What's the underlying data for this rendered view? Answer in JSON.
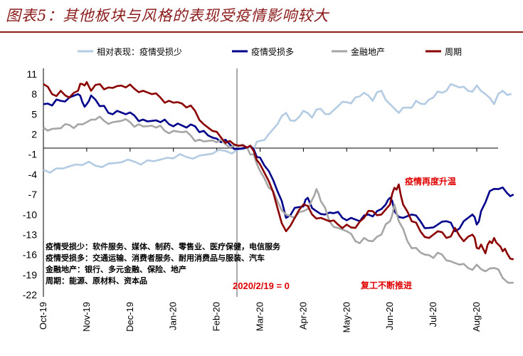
{
  "title": "图表5：其他板块与风格的表现受疫情影响较大",
  "legend": [
    {
      "label": "相对表现：疫情受损少",
      "color": "#b4cbe4"
    },
    {
      "label": "疫情受损多",
      "color": "#00008b"
    },
    {
      "label": "金融地产",
      "color": "#a6a6a6"
    },
    {
      "label": "周期",
      "color": "#8b0000"
    }
  ],
  "notes": [
    "疫情受损少：软件服务、媒体、制药、零售业、医疗保健，电信服务",
    "疫情受损多：交通运输、消费者服务、耐用消费品与服装、汽车",
    "金融地产：银行、多元金融、保险、地产",
    "周期：能源、原材料、资本品"
  ],
  "annotations": {
    "resurgence": "疫情再度升温",
    "resumption": "复工不断推进",
    "base_date": "2020/2/19 = 0"
  },
  "chart_data": {
    "type": "line",
    "title": "其他板块与风格的表现受疫情影响较大",
    "ylim": [
      -22,
      12.5
    ],
    "yticks": [
      11,
      8,
      5,
      2,
      -1,
      -4,
      -7,
      -10,
      -13,
      -16,
      -19,
      -22
    ],
    "xrange": [
      0,
      11
    ],
    "xticks": [
      {
        "label": "Oct-19",
        "x": 0
      },
      {
        "label": "Nov-19",
        "x": 1
      },
      {
        "label": "Dec-19",
        "x": 2
      },
      {
        "label": "Jan-20",
        "x": 3
      },
      {
        "label": "Feb-20",
        "x": 4
      },
      {
        "label": "Mar-20",
        "x": 5
      },
      {
        "label": "Apr-20",
        "x": 6
      },
      {
        "label": "May-20",
        "x": 7
      },
      {
        "label": "Jun-20",
        "x": 8
      },
      {
        "label": "Jul-20",
        "x": 9
      },
      {
        "label": "Aug-20",
        "x": 10
      }
    ],
    "series": [
      {
        "name": "相对表现：疫情受损少",
        "color": "#b4cbe4",
        "points": [
          [
            0,
            -3.3
          ],
          [
            0.3,
            -3.1
          ],
          [
            0.6,
            -2.8
          ],
          [
            0.9,
            -2.6
          ],
          [
            1.2,
            -2.7
          ],
          [
            1.5,
            -2.4
          ],
          [
            1.8,
            -2.2
          ],
          [
            2.1,
            -2.1
          ],
          [
            2.4,
            -1.9
          ],
          [
            2.7,
            -1.8
          ],
          [
            3.0,
            -1.6
          ],
          [
            3.3,
            -1.4
          ],
          [
            3.6,
            -1.2
          ],
          [
            3.9,
            -0.9
          ],
          [
            4.2,
            -0.5
          ],
          [
            4.5,
            -0.2
          ],
          [
            4.7,
            0
          ],
          [
            4.85,
            -0.3
          ],
          [
            5.0,
            1.0
          ],
          [
            5.2,
            2.0
          ],
          [
            5.4,
            3.5
          ],
          [
            5.6,
            5.2
          ],
          [
            5.8,
            4.0
          ],
          [
            6.0,
            5.5
          ],
          [
            6.2,
            4.5
          ],
          [
            6.4,
            5.8
          ],
          [
            6.6,
            5.0
          ],
          [
            6.8,
            6.2
          ],
          [
            7.0,
            6.8
          ],
          [
            7.2,
            7.5
          ],
          [
            7.4,
            8.2
          ],
          [
            7.6,
            7.0
          ],
          [
            7.8,
            8.5
          ],
          [
            8.0,
            6.5
          ],
          [
            8.2,
            5.2
          ],
          [
            8.4,
            6.0
          ],
          [
            8.6,
            7.0
          ],
          [
            8.8,
            6.5
          ],
          [
            9.0,
            7.5
          ],
          [
            9.2,
            8.2
          ],
          [
            9.4,
            9.5
          ],
          [
            9.6,
            9.0
          ],
          [
            9.8,
            8.5
          ],
          [
            10.0,
            9.3
          ],
          [
            10.2,
            8.0
          ],
          [
            10.4,
            6.5
          ],
          [
            10.6,
            8.5
          ],
          [
            10.8,
            8.0
          ]
        ]
      },
      {
        "name": "疫情受损多",
        "color": "#00008b",
        "points": [
          [
            0,
            6.5
          ],
          [
            0.2,
            6.3
          ],
          [
            0.4,
            7.0
          ],
          [
            0.6,
            7.5
          ],
          [
            0.8,
            8.0
          ],
          [
            0.9,
            6.8
          ],
          [
            1.0,
            6.5
          ],
          [
            1.1,
            7.8
          ],
          [
            1.3,
            6.2
          ],
          [
            1.5,
            5.2
          ],
          [
            1.7,
            5.5
          ],
          [
            1.9,
            5.0
          ],
          [
            2.1,
            4.8
          ],
          [
            2.3,
            4.2
          ],
          [
            2.5,
            4.0
          ],
          [
            2.7,
            3.8
          ],
          [
            2.9,
            3.5
          ],
          [
            3.1,
            3.6
          ],
          [
            3.3,
            3.0
          ],
          [
            3.5,
            3.2
          ],
          [
            3.7,
            2.5
          ],
          [
            3.9,
            1.5
          ],
          [
            4.1,
            0.8
          ],
          [
            4.3,
            0.5
          ],
          [
            4.5,
            -0.2
          ],
          [
            4.7,
            0
          ],
          [
            4.85,
            -0.2
          ],
          [
            5.0,
            -1.5
          ],
          [
            5.2,
            -3.5
          ],
          [
            5.4,
            -6.5
          ],
          [
            5.6,
            -10.5
          ],
          [
            5.8,
            -9.0
          ],
          [
            6.0,
            -8.8
          ],
          [
            6.1,
            -7.5
          ],
          [
            6.3,
            -9.5
          ],
          [
            6.5,
            -10.0
          ],
          [
            6.7,
            -9.8
          ],
          [
            6.9,
            -10.5
          ],
          [
            7.1,
            -10.5
          ],
          [
            7.3,
            -11.0
          ],
          [
            7.5,
            -10.0
          ],
          [
            7.7,
            -9.5
          ],
          [
            7.9,
            -8.5
          ],
          [
            8.0,
            -7.5
          ],
          [
            8.1,
            -9.5
          ],
          [
            8.3,
            -10.5
          ],
          [
            8.5,
            -10.0
          ],
          [
            8.7,
            -11.0
          ],
          [
            8.9,
            -12.0
          ],
          [
            9.1,
            -11.5
          ],
          [
            9.3,
            -11.0
          ],
          [
            9.5,
            -12.5
          ],
          [
            9.7,
            -11.0
          ],
          [
            9.9,
            -10.0
          ],
          [
            10.0,
            -11.5
          ],
          [
            10.1,
            -9.5
          ],
          [
            10.3,
            -6.5
          ],
          [
            10.5,
            -6.2
          ],
          [
            10.7,
            -6.8
          ],
          [
            10.85,
            -7.0
          ]
        ]
      },
      {
        "name": "金融地产",
        "color": "#a6a6a6",
        "points": [
          [
            0,
            3.0
          ],
          [
            0.2,
            2.8
          ],
          [
            0.4,
            2.9
          ],
          [
            0.6,
            3.4
          ],
          [
            0.8,
            3.5
          ],
          [
            1.0,
            3.8
          ],
          [
            1.2,
            4.2
          ],
          [
            1.4,
            4.0
          ],
          [
            1.6,
            3.8
          ],
          [
            1.8,
            4.0
          ],
          [
            2.0,
            3.8
          ],
          [
            2.2,
            3.5
          ],
          [
            2.4,
            3.2
          ],
          [
            2.6,
            3.0
          ],
          [
            2.8,
            2.5
          ],
          [
            3.0,
            2.5
          ],
          [
            3.2,
            2.3
          ],
          [
            3.4,
            1.8
          ],
          [
            3.6,
            1.2
          ],
          [
            3.8,
            1.0
          ],
          [
            4.0,
            0.8
          ],
          [
            4.2,
            0.5
          ],
          [
            4.4,
            0.3
          ],
          [
            4.5,
            0.2
          ],
          [
            4.7,
            0
          ],
          [
            4.85,
            -1.0
          ],
          [
            5.0,
            -3.5
          ],
          [
            5.2,
            -6.0
          ],
          [
            5.4,
            -8.0
          ],
          [
            5.6,
            -10.0
          ],
          [
            5.8,
            -10.5
          ],
          [
            6.0,
            -9.5
          ],
          [
            6.2,
            -7.8
          ],
          [
            6.3,
            -6.2
          ],
          [
            6.4,
            -8.0
          ],
          [
            6.6,
            -11.0
          ],
          [
            6.8,
            -12.0
          ],
          [
            7.0,
            -12.5
          ],
          [
            7.2,
            -14.0
          ],
          [
            7.4,
            -13.5
          ],
          [
            7.6,
            -14.0
          ],
          [
            7.8,
            -13.0
          ],
          [
            8.0,
            -11.0
          ],
          [
            8.1,
            -8.5
          ],
          [
            8.2,
            -11.0
          ],
          [
            8.4,
            -14.0
          ],
          [
            8.6,
            -15.0
          ],
          [
            8.8,
            -16.0
          ],
          [
            9.0,
            -16.5
          ],
          [
            9.2,
            -16.0
          ],
          [
            9.4,
            -17.0
          ],
          [
            9.6,
            -17.5
          ],
          [
            9.8,
            -18.0
          ],
          [
            10.0,
            -17.5
          ],
          [
            10.2,
            -18.5
          ],
          [
            10.4,
            -18.0
          ],
          [
            10.6,
            -19.5
          ],
          [
            10.85,
            -20.2
          ]
        ]
      },
      {
        "name": "周期",
        "color": "#8b0000",
        "points": [
          [
            0,
            9.5
          ],
          [
            0.2,
            8.0
          ],
          [
            0.4,
            8.5
          ],
          [
            0.6,
            7.5
          ],
          [
            0.8,
            8.5
          ],
          [
            0.9,
            9.5
          ],
          [
            1.0,
            9.8
          ],
          [
            1.1,
            8.5
          ],
          [
            1.3,
            9.5
          ],
          [
            1.5,
            9.0
          ],
          [
            1.7,
            9.2
          ],
          [
            1.9,
            9.0
          ],
          [
            2.1,
            8.8
          ],
          [
            2.3,
            8.5
          ],
          [
            2.5,
            8.0
          ],
          [
            2.7,
            7.5
          ],
          [
            2.9,
            7.0
          ],
          [
            3.1,
            6.8
          ],
          [
            3.3,
            6.0
          ],
          [
            3.5,
            5.5
          ],
          [
            3.7,
            3.5
          ],
          [
            3.9,
            2.5
          ],
          [
            4.1,
            1.5
          ],
          [
            4.3,
            1.0
          ],
          [
            4.5,
            0.3
          ],
          [
            4.7,
            0
          ],
          [
            4.85,
            -0.5
          ],
          [
            5.0,
            -2.5
          ],
          [
            5.2,
            -5.0
          ],
          [
            5.4,
            -9.0
          ],
          [
            5.6,
            -12.5
          ],
          [
            5.8,
            -10.5
          ],
          [
            6.0,
            -8.5
          ],
          [
            6.2,
            -10.0
          ],
          [
            6.4,
            -10.5
          ],
          [
            6.6,
            -11.0
          ],
          [
            6.8,
            -11.5
          ],
          [
            7.0,
            -11.5
          ],
          [
            7.2,
            -12.0
          ],
          [
            7.4,
            -10.5
          ],
          [
            7.6,
            -9.5
          ],
          [
            7.8,
            -10.0
          ],
          [
            8.0,
            -8.5
          ],
          [
            8.1,
            -6.0
          ],
          [
            8.2,
            -5.5
          ],
          [
            8.3,
            -8.5
          ],
          [
            8.5,
            -11.0
          ],
          [
            8.7,
            -12.5
          ],
          [
            8.9,
            -13.5
          ],
          [
            9.1,
            -12.5
          ],
          [
            9.3,
            -13.5
          ],
          [
            9.5,
            -12.0
          ],
          [
            9.7,
            -14.0
          ],
          [
            9.9,
            -13.0
          ],
          [
            10.0,
            -15.0
          ],
          [
            10.1,
            -14.5
          ],
          [
            10.2,
            -15.8
          ],
          [
            10.3,
            -14.0
          ],
          [
            10.4,
            -13.5
          ],
          [
            10.5,
            -14.5
          ],
          [
            10.6,
            -15.5
          ],
          [
            10.7,
            -15.8
          ],
          [
            10.85,
            -16.7
          ]
        ]
      }
    ]
  }
}
